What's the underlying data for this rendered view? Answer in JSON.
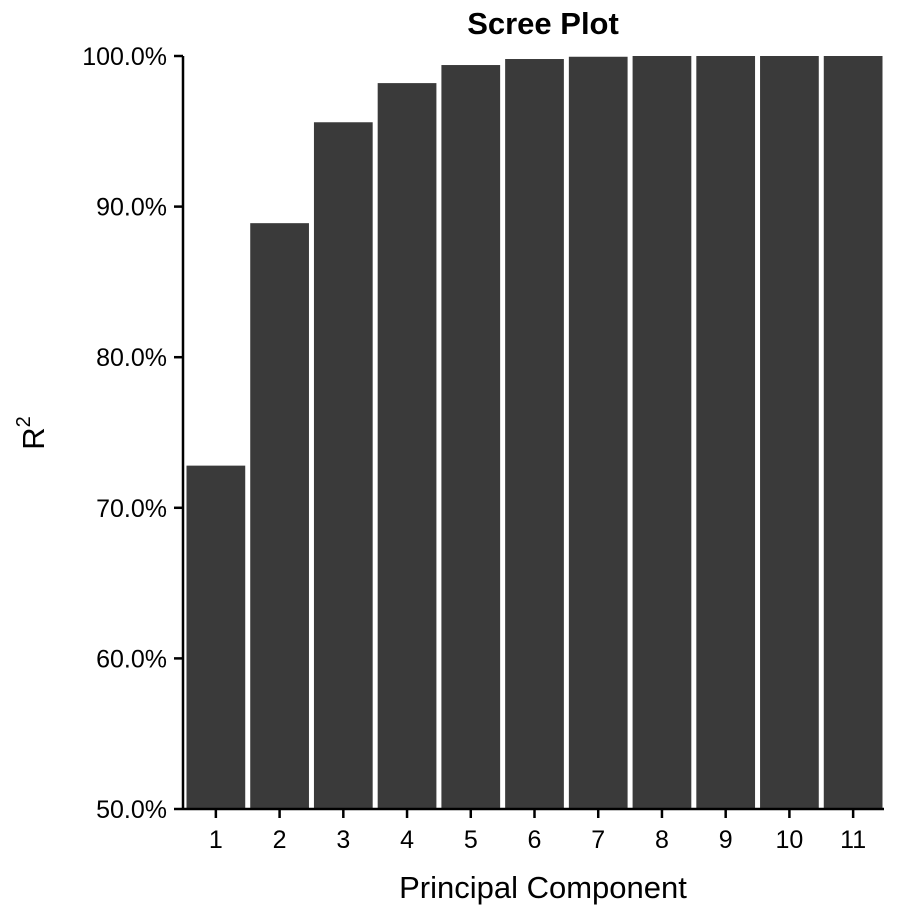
{
  "chart_data": {
    "type": "bar",
    "title": "Scree Plot",
    "xlabel": "Principal Component",
    "ylabel": "R",
    "ylabel_superscript": "2",
    "categories": [
      "1",
      "2",
      "3",
      "4",
      "5",
      "6",
      "7",
      "8",
      "9",
      "10",
      "11"
    ],
    "values": [
      72.8,
      88.9,
      95.6,
      98.2,
      99.4,
      99.8,
      99.95,
      100.0,
      100.0,
      100.0,
      100.0
    ],
    "ylim": [
      50,
      100
    ],
    "yticks": [
      50,
      60,
      70,
      80,
      90,
      100
    ],
    "ytick_labels": [
      "50.0%",
      "60.0%",
      "70.0%",
      "80.0%",
      "90.0%",
      "100.0%"
    ],
    "grid": false,
    "legend": "none",
    "bar_color": "#3a3a3a"
  }
}
